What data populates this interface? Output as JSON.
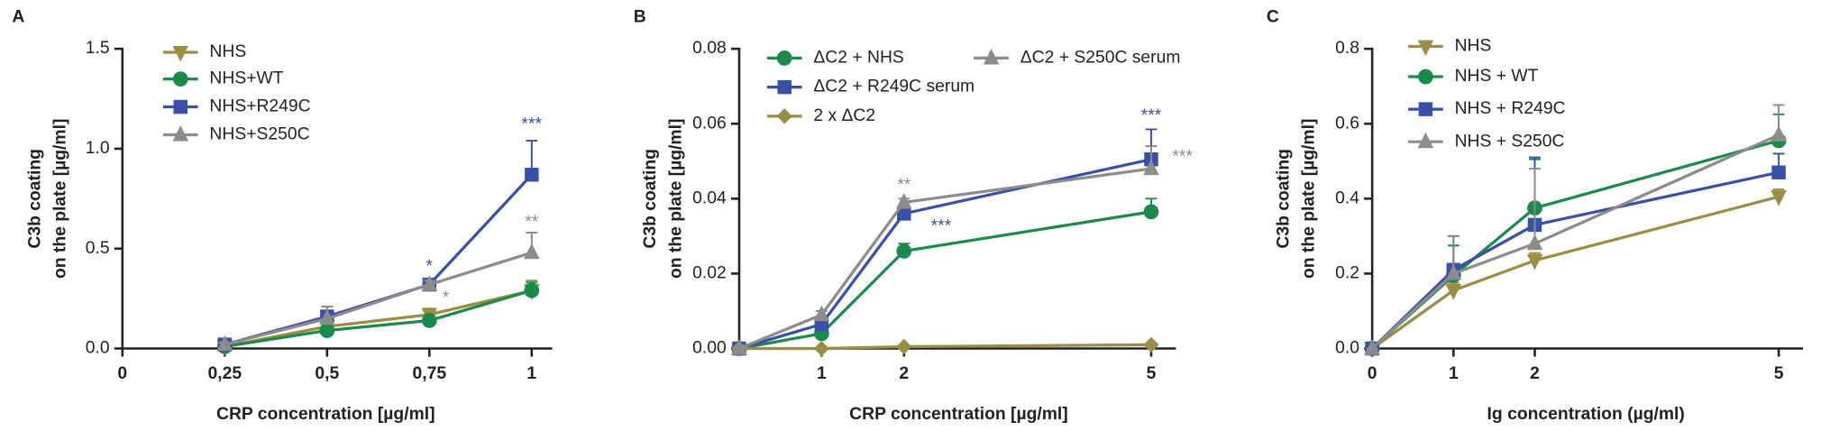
{
  "chart_data": [
    {
      "type": "line",
      "panel_label": "A",
      "y_label": [
        "C3b coating",
        "on the plate [µg/ml]"
      ],
      "x_label": "CRP concentration [µg/ml]",
      "x": [
        0.25,
        0.5,
        0.75,
        1
      ],
      "xlim": [
        0,
        1.05
      ],
      "xticks": [
        0,
        {
          "value": 0.25,
          "label": "0,25"
        },
        {
          "value": 0.5,
          "label": "0,5"
        },
        {
          "value": 0.75,
          "label": "0,75"
        },
        1
      ],
      "ylim": [
        0,
        1.5
      ],
      "yticks": [
        {
          "value": 0,
          "label": "0.0"
        },
        0.5,
        {
          "value": 1,
          "label": "1.0"
        },
        1.5
      ],
      "series": [
        {
          "name": "NHS",
          "color": "#9a8d45",
          "marker": "triangle-down",
          "values": [
            0.01,
            0.11,
            0.17,
            0.29
          ],
          "errors": [
            0.01,
            0.02,
            0.03,
            0.05
          ]
        },
        {
          "name": "NHS+WT",
          "color": "#1b8a4c",
          "marker": "circle",
          "values": [
            0.01,
            0.09,
            0.14,
            0.29
          ],
          "errors": [
            0.01,
            0.02,
            0.02,
            0.04
          ]
        },
        {
          "name": "NHS+R249C",
          "color": "#3a4fa8",
          "marker": "square",
          "values": [
            0.02,
            0.16,
            0.32,
            0.87
          ],
          "errors": [
            0.01,
            0.05,
            0.02,
            0.17
          ]
        },
        {
          "name": "NHS+S250C",
          "color": "#8c8c8c",
          "marker": "triangle-up",
          "values": [
            0.02,
            0.15,
            0.32,
            0.48
          ],
          "errors": [
            0.01,
            0.06,
            0.02,
            0.1
          ]
        }
      ],
      "annotations": [
        {
          "text": "*",
          "color": "#3a4fa8"
        },
        {
          "text": "*",
          "color": "#8c8c8c"
        },
        {
          "text": "***",
          "color": "#3a4fa8"
        },
        {
          "text": "**",
          "color": "#8c8c8c"
        }
      ]
    },
    {
      "type": "line",
      "panel_label": "B",
      "y_label": [
        "C3b coating",
        "on the plate [µg/ml]"
      ],
      "x_label": "CRP concentration [µg/ml]",
      "x": [
        0,
        1,
        2,
        5
      ],
      "xlim": [
        0,
        5.3
      ],
      "xticks": [
        1,
        2,
        5
      ],
      "ylim": [
        0,
        0.08
      ],
      "yticks": [
        {
          "value": 0,
          "label": "0.00"
        },
        0.02,
        0.04,
        0.06,
        0.08
      ],
      "series": [
        {
          "name": "ΔC2 + NHS",
          "color": "#1b8a4c",
          "marker": "circle",
          "values": [
            0,
            0.004,
            0.026,
            0.0365
          ],
          "errors": [
            0,
            0.001,
            0.002,
            0.0035
          ]
        },
        {
          "name": "ΔC2 + R249C serum",
          "color": "#3a4fa8",
          "marker": "square",
          "values": [
            0,
            0.0065,
            0.036,
            0.0505
          ],
          "errors": [
            0,
            0.001,
            0.0015,
            0.008
          ]
        },
        {
          "name": "2 x ΔC2",
          "color": "#9a8d45",
          "marker": "diamond",
          "values": [
            0,
            0,
            0.0005,
            0.001
          ],
          "errors": [
            0,
            0,
            0,
            0
          ]
        },
        {
          "name": "ΔC2 + S250C serum",
          "color": "#8c8c8c",
          "marker": "triangle-up",
          "values": [
            0,
            0.009,
            0.039,
            0.048
          ],
          "errors": [
            0,
            0.001,
            0.001,
            0.006
          ]
        }
      ],
      "annotations": [
        {
          "text": "**",
          "color": "#8c8c8c"
        },
        {
          "text": "***",
          "color": "#3a4fa8"
        },
        {
          "text": "***",
          "color": "#3a4fa8"
        },
        {
          "text": "***",
          "color": "#8c8c8c"
        }
      ]
    },
    {
      "type": "line",
      "panel_label": "C",
      "y_label": [
        "C3b coating",
        "on the plate [µg/ml]"
      ],
      "x_label": "Ig concentration (µg/ml)",
      "x": [
        0,
        1,
        2,
        5
      ],
      "xlim": [
        0,
        5.3
      ],
      "xticks": [
        0,
        1,
        2,
        5
      ],
      "ylim": [
        0,
        0.8
      ],
      "yticks": [
        {
          "value": 0,
          "label": "0.0"
        },
        0.2,
        0.4,
        0.6,
        0.8
      ],
      "series": [
        {
          "name": "NHS",
          "color": "#9a8d45",
          "marker": "triangle-down",
          "values": [
            0,
            0.155,
            0.235,
            0.405
          ],
          "errors": [
            0,
            0.02,
            0.02,
            0.02
          ]
        },
        {
          "name": "NHS + WT",
          "color": "#1b8a4c",
          "marker": "circle",
          "values": [
            0,
            0.195,
            0.375,
            0.555
          ],
          "errors": [
            0,
            0.08,
            0.13,
            0.07
          ]
        },
        {
          "name": "NHS + R249C",
          "color": "#3a4fa8",
          "marker": "square",
          "values": [
            0,
            0.21,
            0.33,
            0.47
          ],
          "errors": [
            0,
            0.09,
            0.18,
            0.05
          ]
        },
        {
          "name": "NHS + S250C",
          "color": "#8c8c8c",
          "marker": "triangle-up",
          "values": [
            0,
            0.2,
            0.28,
            0.57
          ],
          "errors": [
            0,
            0.1,
            0.2,
            0.08
          ]
        }
      ]
    }
  ]
}
